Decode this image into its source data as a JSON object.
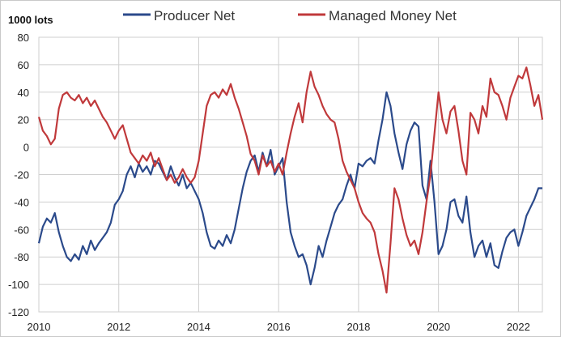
{
  "chart_data": {
    "type": "line",
    "ylabel": "1000 lots",
    "xlim": [
      2010,
      2022.6
    ],
    "ylim": [
      -120,
      80
    ],
    "x_ticks": [
      2010,
      2012,
      2014,
      2016,
      2018,
      2020,
      2022
    ],
    "y_ticks": [
      80,
      60,
      40,
      20,
      0,
      -20,
      -40,
      -60,
      -80,
      -100,
      -120
    ],
    "grid": true,
    "legend_position": "top",
    "series": [
      {
        "name": "Producer Net",
        "color": "#2b4a8b",
        "points": [
          [
            2010.0,
            -70
          ],
          [
            2010.1,
            -58
          ],
          [
            2010.2,
            -52
          ],
          [
            2010.3,
            -55
          ],
          [
            2010.4,
            -48
          ],
          [
            2010.5,
            -62
          ],
          [
            2010.6,
            -72
          ],
          [
            2010.7,
            -80
          ],
          [
            2010.8,
            -83
          ],
          [
            2010.9,
            -78
          ],
          [
            2011.0,
            -82
          ],
          [
            2011.1,
            -72
          ],
          [
            2011.2,
            -78
          ],
          [
            2011.3,
            -68
          ],
          [
            2011.4,
            -75
          ],
          [
            2011.5,
            -70
          ],
          [
            2011.6,
            -66
          ],
          [
            2011.7,
            -62
          ],
          [
            2011.8,
            -55
          ],
          [
            2011.9,
            -42
          ],
          [
            2012.0,
            -38
          ],
          [
            2012.1,
            -32
          ],
          [
            2012.2,
            -20
          ],
          [
            2012.3,
            -14
          ],
          [
            2012.4,
            -22
          ],
          [
            2012.5,
            -12
          ],
          [
            2012.6,
            -18
          ],
          [
            2012.7,
            -14
          ],
          [
            2012.8,
            -20
          ],
          [
            2012.9,
            -10
          ],
          [
            2013.0,
            -12
          ],
          [
            2013.1,
            -18
          ],
          [
            2013.2,
            -24
          ],
          [
            2013.3,
            -14
          ],
          [
            2013.4,
            -22
          ],
          [
            2013.5,
            -28
          ],
          [
            2013.6,
            -20
          ],
          [
            2013.7,
            -30
          ],
          [
            2013.8,
            -26
          ],
          [
            2013.9,
            -32
          ],
          [
            2014.0,
            -38
          ],
          [
            2014.1,
            -48
          ],
          [
            2014.2,
            -62
          ],
          [
            2014.3,
            -72
          ],
          [
            2014.4,
            -74
          ],
          [
            2014.5,
            -68
          ],
          [
            2014.6,
            -72
          ],
          [
            2014.7,
            -64
          ],
          [
            2014.8,
            -70
          ],
          [
            2014.9,
            -60
          ],
          [
            2015.0,
            -45
          ],
          [
            2015.1,
            -30
          ],
          [
            2015.2,
            -18
          ],
          [
            2015.3,
            -10
          ],
          [
            2015.4,
            -6
          ],
          [
            2015.5,
            -18
          ],
          [
            2015.6,
            -4
          ],
          [
            2015.7,
            -14
          ],
          [
            2015.8,
            -2
          ],
          [
            2015.9,
            -20
          ],
          [
            2016.0,
            -14
          ],
          [
            2016.1,
            -8
          ],
          [
            2016.2,
            -40
          ],
          [
            2016.3,
            -62
          ],
          [
            2016.4,
            -72
          ],
          [
            2016.5,
            -80
          ],
          [
            2016.6,
            -78
          ],
          [
            2016.7,
            -86
          ],
          [
            2016.8,
            -100
          ],
          [
            2016.9,
            -88
          ],
          [
            2017.0,
            -72
          ],
          [
            2017.1,
            -80
          ],
          [
            2017.2,
            -68
          ],
          [
            2017.3,
            -58
          ],
          [
            2017.4,
            -48
          ],
          [
            2017.5,
            -42
          ],
          [
            2017.6,
            -38
          ],
          [
            2017.7,
            -28
          ],
          [
            2017.8,
            -20
          ],
          [
            2017.9,
            -30
          ],
          [
            2018.0,
            -12
          ],
          [
            2018.1,
            -14
          ],
          [
            2018.2,
            -10
          ],
          [
            2018.3,
            -8
          ],
          [
            2018.4,
            -12
          ],
          [
            2018.5,
            5
          ],
          [
            2018.6,
            20
          ],
          [
            2018.7,
            40
          ],
          [
            2018.8,
            30
          ],
          [
            2018.9,
            10
          ],
          [
            2019.0,
            -4
          ],
          [
            2019.1,
            -16
          ],
          [
            2019.2,
            2
          ],
          [
            2019.3,
            12
          ],
          [
            2019.4,
            18
          ],
          [
            2019.5,
            15
          ],
          [
            2019.6,
            -28
          ],
          [
            2019.7,
            -38
          ],
          [
            2019.8,
            -10
          ],
          [
            2019.9,
            -40
          ],
          [
            2020.0,
            -78
          ],
          [
            2020.1,
            -72
          ],
          [
            2020.2,
            -60
          ],
          [
            2020.3,
            -40
          ],
          [
            2020.4,
            -38
          ],
          [
            2020.5,
            -50
          ],
          [
            2020.6,
            -55
          ],
          [
            2020.7,
            -36
          ],
          [
            2020.8,
            -62
          ],
          [
            2020.9,
            -80
          ],
          [
            2021.0,
            -72
          ],
          [
            2021.1,
            -68
          ],
          [
            2021.2,
            -80
          ],
          [
            2021.3,
            -70
          ],
          [
            2021.4,
            -86
          ],
          [
            2021.5,
            -88
          ],
          [
            2021.6,
            -76
          ],
          [
            2021.7,
            -66
          ],
          [
            2021.8,
            -62
          ],
          [
            2021.9,
            -60
          ],
          [
            2022.0,
            -72
          ],
          [
            2022.1,
            -62
          ],
          [
            2022.2,
            -50
          ],
          [
            2022.3,
            -44
          ],
          [
            2022.4,
            -38
          ],
          [
            2022.5,
            -30
          ],
          [
            2022.6,
            -30
          ]
        ]
      },
      {
        "name": "Managed Money Net",
        "color": "#c0393b",
        "points": [
          [
            2010.0,
            22
          ],
          [
            2010.1,
            12
          ],
          [
            2010.2,
            8
          ],
          [
            2010.3,
            2
          ],
          [
            2010.4,
            6
          ],
          [
            2010.5,
            28
          ],
          [
            2010.6,
            38
          ],
          [
            2010.7,
            40
          ],
          [
            2010.8,
            36
          ],
          [
            2010.9,
            34
          ],
          [
            2011.0,
            38
          ],
          [
            2011.1,
            32
          ],
          [
            2011.2,
            36
          ],
          [
            2011.3,
            30
          ],
          [
            2011.4,
            34
          ],
          [
            2011.5,
            28
          ],
          [
            2011.6,
            22
          ],
          [
            2011.7,
            18
          ],
          [
            2011.8,
            12
          ],
          [
            2011.9,
            6
          ],
          [
            2012.0,
            12
          ],
          [
            2012.1,
            16
          ],
          [
            2012.2,
            6
          ],
          [
            2012.3,
            -4
          ],
          [
            2012.4,
            -8
          ],
          [
            2012.5,
            -12
          ],
          [
            2012.6,
            -6
          ],
          [
            2012.7,
            -10
          ],
          [
            2012.8,
            -4
          ],
          [
            2012.9,
            -14
          ],
          [
            2013.0,
            -8
          ],
          [
            2013.1,
            -16
          ],
          [
            2013.2,
            -24
          ],
          [
            2013.3,
            -20
          ],
          [
            2013.4,
            -26
          ],
          [
            2013.5,
            -22
          ],
          [
            2013.6,
            -16
          ],
          [
            2013.7,
            -22
          ],
          [
            2013.8,
            -26
          ],
          [
            2013.9,
            -22
          ],
          [
            2014.0,
            -10
          ],
          [
            2014.1,
            10
          ],
          [
            2014.2,
            30
          ],
          [
            2014.3,
            38
          ],
          [
            2014.4,
            40
          ],
          [
            2014.5,
            36
          ],
          [
            2014.6,
            42
          ],
          [
            2014.7,
            38
          ],
          [
            2014.8,
            46
          ],
          [
            2014.9,
            36
          ],
          [
            2015.0,
            28
          ],
          [
            2015.1,
            18
          ],
          [
            2015.2,
            8
          ],
          [
            2015.3,
            -5
          ],
          [
            2015.4,
            -10
          ],
          [
            2015.5,
            -20
          ],
          [
            2015.6,
            -6
          ],
          [
            2015.7,
            -14
          ],
          [
            2015.8,
            -10
          ],
          [
            2015.9,
            -18
          ],
          [
            2016.0,
            -12
          ],
          [
            2016.1,
            -20
          ],
          [
            2016.2,
            -4
          ],
          [
            2016.3,
            10
          ],
          [
            2016.4,
            22
          ],
          [
            2016.5,
            32
          ],
          [
            2016.6,
            18
          ],
          [
            2016.7,
            40
          ],
          [
            2016.8,
            55
          ],
          [
            2016.9,
            44
          ],
          [
            2017.0,
            38
          ],
          [
            2017.1,
            30
          ],
          [
            2017.2,
            24
          ],
          [
            2017.3,
            20
          ],
          [
            2017.4,
            18
          ],
          [
            2017.5,
            6
          ],
          [
            2017.6,
            -10
          ],
          [
            2017.7,
            -18
          ],
          [
            2017.8,
            -24
          ],
          [
            2017.9,
            -30
          ],
          [
            2018.0,
            -40
          ],
          [
            2018.1,
            -48
          ],
          [
            2018.2,
            -52
          ],
          [
            2018.3,
            -55
          ],
          [
            2018.4,
            -62
          ],
          [
            2018.5,
            -78
          ],
          [
            2018.6,
            -90
          ],
          [
            2018.7,
            -106
          ],
          [
            2018.8,
            -70
          ],
          [
            2018.9,
            -30
          ],
          [
            2019.0,
            -38
          ],
          [
            2019.1,
            -52
          ],
          [
            2019.2,
            -64
          ],
          [
            2019.3,
            -72
          ],
          [
            2019.4,
            -68
          ],
          [
            2019.5,
            -78
          ],
          [
            2019.6,
            -62
          ],
          [
            2019.7,
            -40
          ],
          [
            2019.8,
            -20
          ],
          [
            2019.9,
            10
          ],
          [
            2020.0,
            40
          ],
          [
            2020.1,
            20
          ],
          [
            2020.2,
            10
          ],
          [
            2020.3,
            26
          ],
          [
            2020.4,
            30
          ],
          [
            2020.5,
            12
          ],
          [
            2020.6,
            -10
          ],
          [
            2020.7,
            -20
          ],
          [
            2020.8,
            25
          ],
          [
            2020.9,
            20
          ],
          [
            2021.0,
            10
          ],
          [
            2021.1,
            30
          ],
          [
            2021.2,
            22
          ],
          [
            2021.3,
            50
          ],
          [
            2021.4,
            40
          ],
          [
            2021.5,
            38
          ],
          [
            2021.6,
            30
          ],
          [
            2021.7,
            20
          ],
          [
            2021.8,
            36
          ],
          [
            2021.9,
            44
          ],
          [
            2022.0,
            52
          ],
          [
            2022.1,
            50
          ],
          [
            2022.2,
            58
          ],
          [
            2022.3,
            45
          ],
          [
            2022.4,
            30
          ],
          [
            2022.5,
            38
          ],
          [
            2022.6,
            20
          ]
        ]
      }
    ]
  }
}
